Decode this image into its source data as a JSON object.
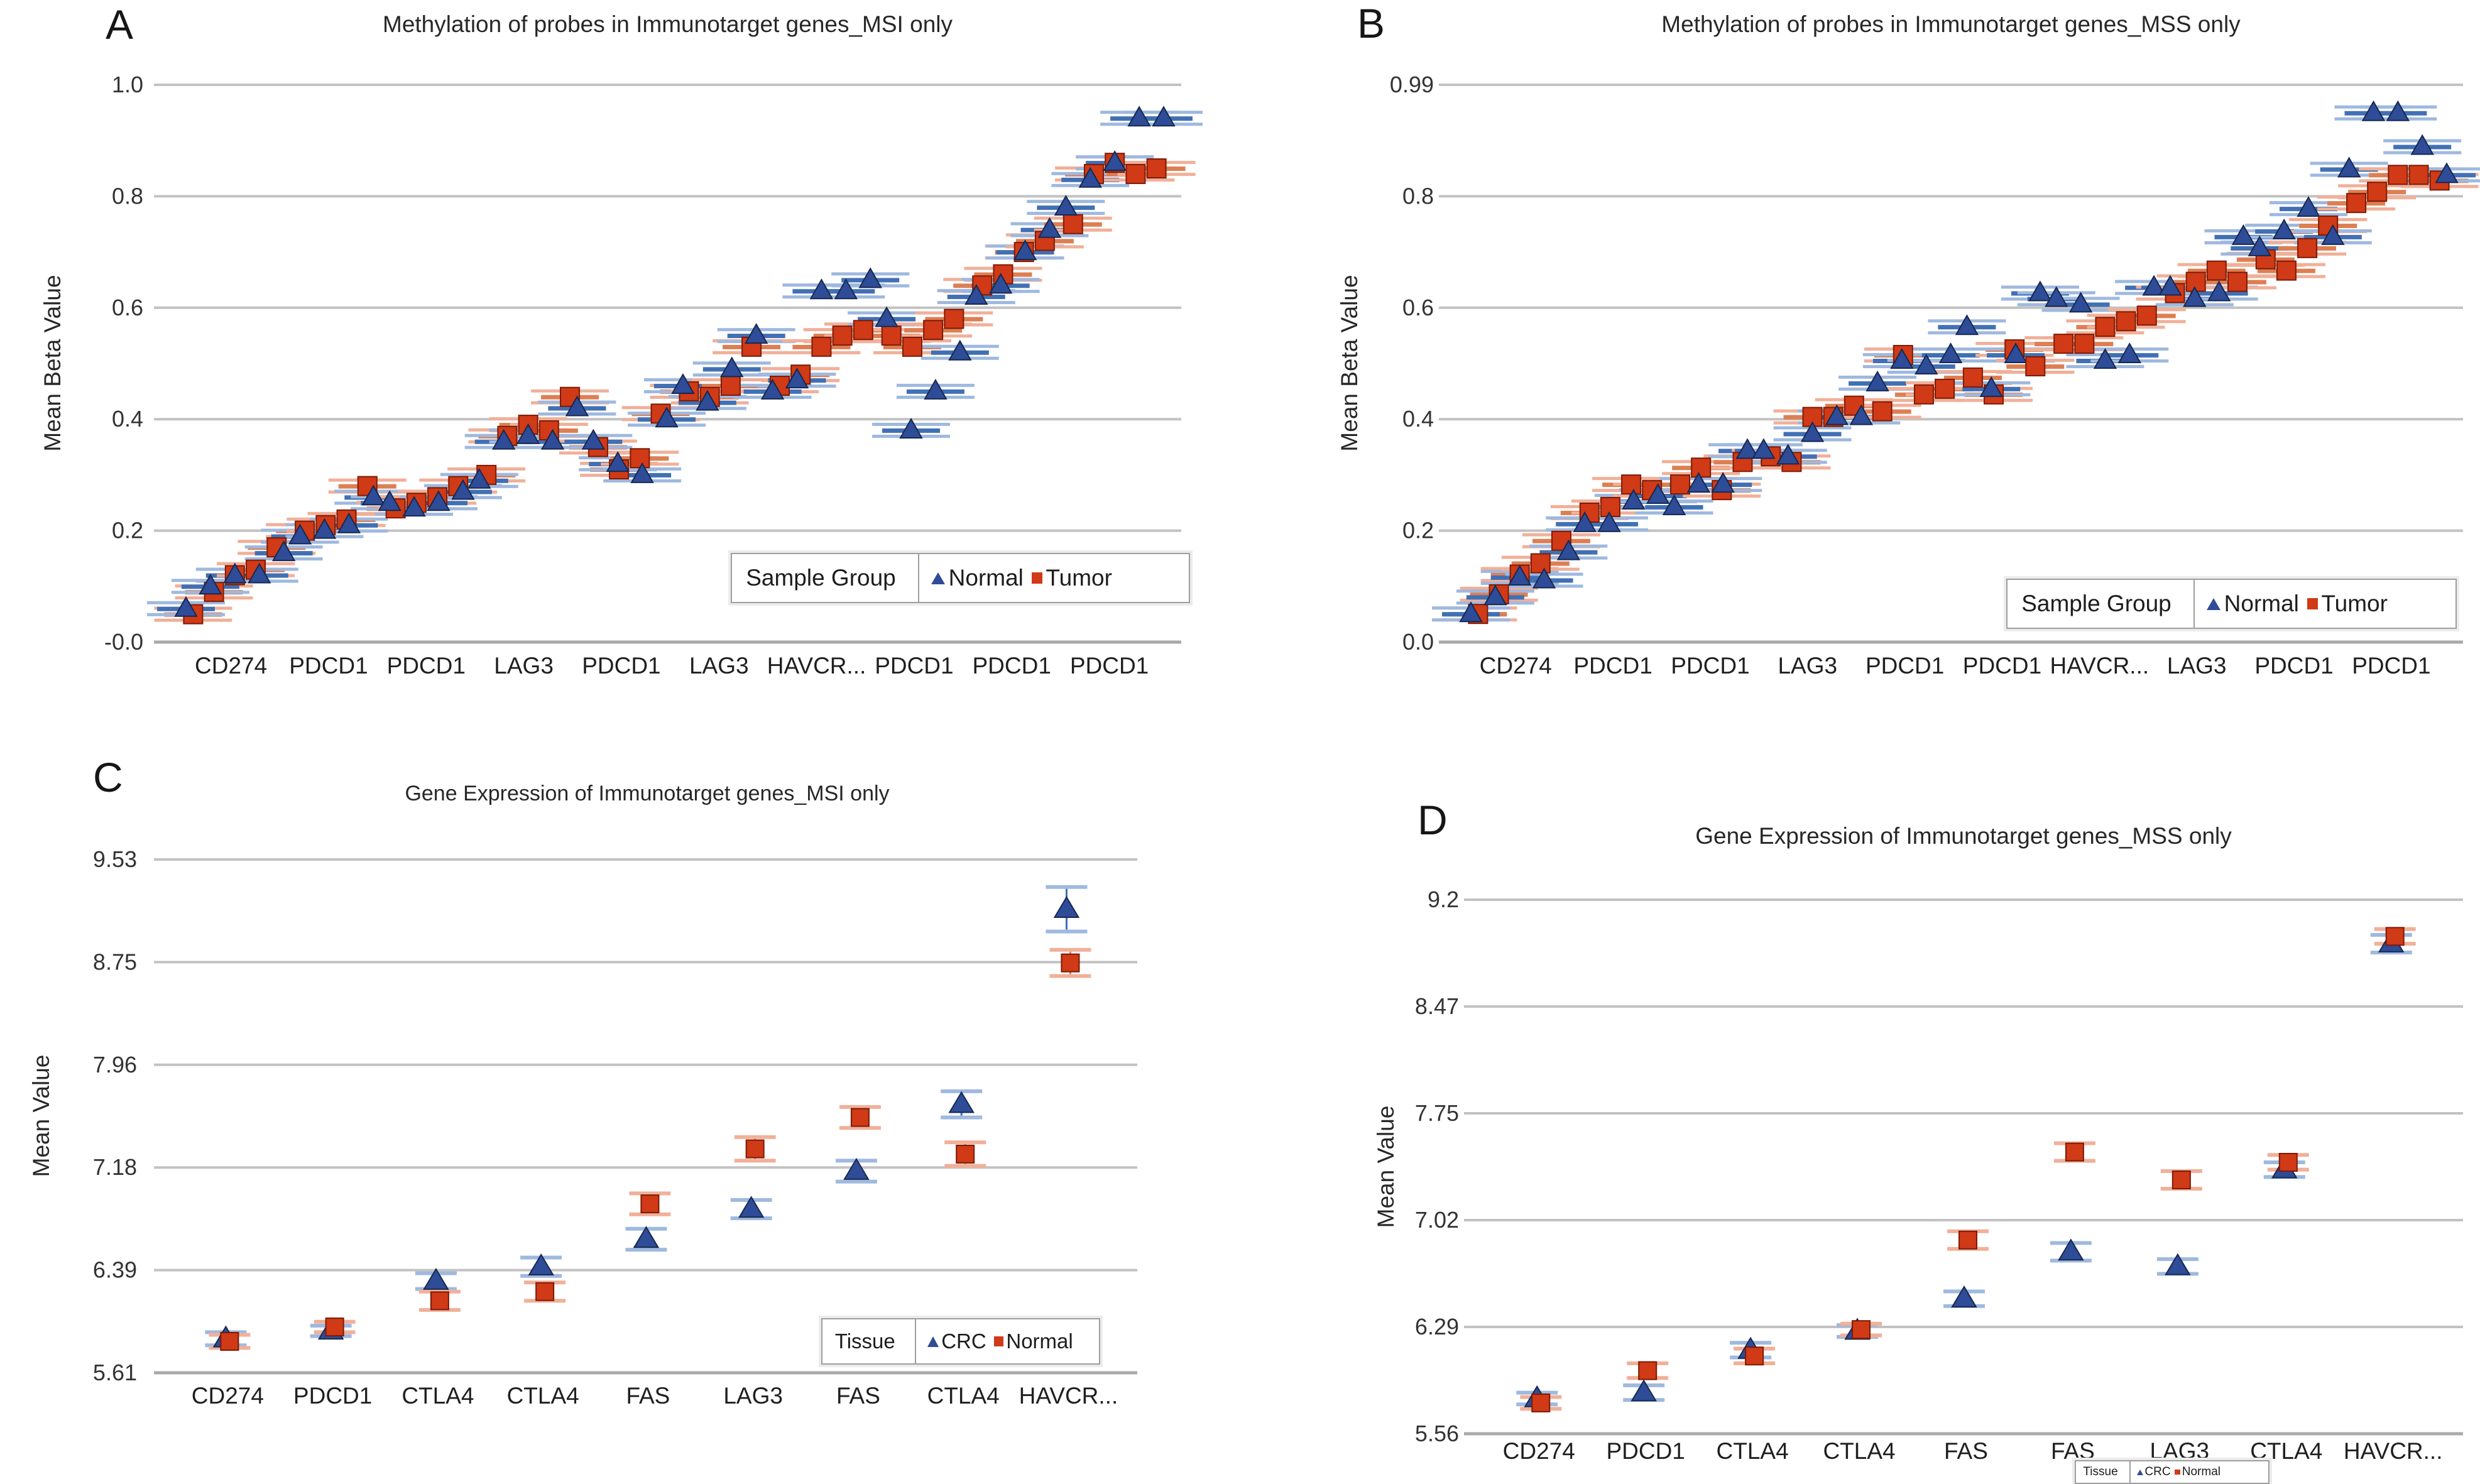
{
  "figure": {
    "background": "#ffffff",
    "colors": {
      "normal_blue": "#2E4C97",
      "blue_stroke": "#17284F",
      "blue_band": "#4170B4",
      "blue_band_light": "#9FB9DF",
      "tumor_red": "#D03A16",
      "red_stroke": "#7D1A05",
      "red_band": "#DD7F53",
      "red_band_light": "#F1B099",
      "grid": "#C2C2C2",
      "axis": "#A9A9A9",
      "tick_text": "#333333",
      "category_text": "#1F1F1F"
    }
  },
  "chart_data": [
    {
      "type": "scatter",
      "chart": "methylation",
      "letter": "A",
      "title": "Methylation of probes in Immunotarget genes_MSI only",
      "ylabel": "Mean Beta Value",
      "y_ticks": [
        "1.0",
        "0.8",
        "0.6",
        "0.4",
        "0.2",
        "-0.0"
      ],
      "y_min": 0.0,
      "y_max": 1.0,
      "grid": "on",
      "x_categories": [
        "CD274",
        "PDCD1",
        "PDCD1",
        "LAG3",
        "PDCD1",
        "LAG3",
        "HAVCR...",
        "PDCD1",
        "PDCD1",
        "PDCD1"
      ],
      "legend": {
        "title": "Sample Group",
        "position": "inside-right-bottom",
        "items": [
          {
            "label": "Normal",
            "marker": "triangle",
            "color": "#2E4C97"
          },
          {
            "label": "Tumor",
            "marker": "square",
            "color": "#D03A16"
          }
        ]
      },
      "series": [
        {
          "name": "Normal",
          "values": [
            0.06,
            0.1,
            0.12,
            0.12,
            0.16,
            0.19,
            0.2,
            0.21,
            0.26,
            0.25,
            0.24,
            0.25,
            0.27,
            0.29,
            0.36,
            0.37,
            0.36,
            0.42,
            0.36,
            0.32,
            0.3,
            0.4,
            0.46,
            0.43,
            0.49,
            0.55,
            0.45,
            0.47,
            0.63,
            0.63,
            0.65,
            0.58,
            0.38,
            0.45,
            0.52,
            0.62,
            0.64,
            0.7,
            0.74,
            0.78,
            0.83,
            0.86,
            0.94,
            0.94
          ]
        },
        {
          "name": "Tumor",
          "values": [
            0.05,
            0.09,
            0.12,
            0.13,
            0.17,
            0.2,
            0.21,
            0.22,
            0.28,
            0.24,
            0.25,
            0.26,
            0.28,
            0.3,
            0.37,
            0.39,
            0.38,
            0.44,
            0.35,
            0.31,
            0.33,
            0.41,
            0.45,
            0.44,
            0.46,
            0.53,
            0.46,
            0.48,
            0.53,
            0.55,
            0.56,
            0.55,
            0.53,
            0.56,
            0.58,
            0.64,
            0.66,
            0.7,
            0.72,
            0.75,
            0.84,
            0.86,
            0.84,
            0.85
          ]
        }
      ]
    },
    {
      "type": "scatter",
      "chart": "methylation",
      "letter": "B",
      "title": "Methylation of probes in Immunotarget genes_MSS only",
      "ylabel": "Mean Beta Value",
      "y_ticks": [
        "0.99",
        "0.8",
        "0.6",
        "0.4",
        "0.2",
        "0.0"
      ],
      "y_min": 0.0,
      "y_max": 0.99,
      "grid": "on",
      "x_categories": [
        "CD274",
        "PDCD1",
        "PDCD1",
        "LAG3",
        "PDCD1",
        "PDCD1",
        "HAVCR...",
        "LAG3",
        "PDCD1",
        "PDCD1"
      ],
      "legend": {
        "title": "Sample Group",
        "position": "inside-right-bottom",
        "items": [
          {
            "label": "Normal",
            "marker": "triangle",
            "color": "#2E4C97"
          },
          {
            "label": "Tumor",
            "marker": "square",
            "color": "#D03A16"
          }
        ]
      },
      "series": [
        {
          "name": "Normal",
          "values": [
            0.05,
            0.08,
            0.115,
            0.11,
            0.16,
            0.21,
            0.21,
            0.25,
            0.26,
            0.24,
            0.28,
            0.28,
            0.34,
            0.34,
            0.33,
            0.37,
            0.4,
            0.4,
            0.46,
            0.5,
            0.49,
            0.51,
            0.56,
            0.45,
            0.51,
            0.62,
            0.61,
            0.6,
            0.5,
            0.51,
            0.63,
            0.63,
            0.61,
            0.62,
            0.72,
            0.7,
            0.73,
            0.77,
            0.72,
            0.84,
            0.94,
            0.94,
            0.88,
            0.83
          ]
        },
        {
          "name": "Tumor",
          "values": [
            0.05,
            0.085,
            0.12,
            0.14,
            0.18,
            0.23,
            0.24,
            0.28,
            0.27,
            0.28,
            0.31,
            0.27,
            0.32,
            0.33,
            0.32,
            0.4,
            0.4,
            0.42,
            0.41,
            0.51,
            0.44,
            0.45,
            0.47,
            0.44,
            0.52,
            0.49,
            0.53,
            0.53,
            0.56,
            0.57,
            0.58,
            0.62,
            0.64,
            0.66,
            0.64,
            0.68,
            0.66,
            0.7,
            0.74,
            0.78,
            0.8,
            0.83,
            0.83,
            0.82
          ]
        }
      ]
    },
    {
      "type": "scatter",
      "chart": "expression",
      "letter": "C",
      "title": "Gene Expression of Immunotarget genes_MSI only",
      "ylabel": "Mean Value",
      "y_ticks": [
        "9.53",
        "8.75",
        "7.96",
        "7.18",
        "6.39",
        "5.61"
      ],
      "y_min": 5.61,
      "y_max": 9.53,
      "grid": "on",
      "x_categories": [
        "CD274",
        "PDCD1",
        "CTLA4",
        "CTLA4",
        "FAS",
        "LAG3",
        "FAS",
        "CTLA4",
        "HAVCR..."
      ],
      "legend": {
        "title": "Tissue",
        "position": "inside-right-bottom",
        "items": [
          {
            "label": "CRC",
            "marker": "triangle",
            "color": "#2E4C97"
          },
          {
            "label": "Normal",
            "marker": "square",
            "color": "#D03A16"
          }
        ]
      },
      "series": [
        {
          "name": "CRC",
          "values": [
            5.87,
            5.93,
            6.31,
            6.42,
            6.63,
            6.86,
            7.15,
            7.66,
            9.15
          ],
          "errors": [
            0.05,
            0.04,
            0.06,
            0.07,
            0.08,
            0.07,
            0.08,
            0.1,
            0.17
          ]
        },
        {
          "name": "Normal",
          "values": [
            5.85,
            5.96,
            6.16,
            6.23,
            6.9,
            7.32,
            7.56,
            7.28,
            8.74
          ],
          "errors": [
            0.05,
            0.04,
            0.07,
            0.07,
            0.08,
            0.09,
            0.08,
            0.09,
            0.1
          ]
        }
      ]
    },
    {
      "type": "scatter",
      "chart": "expression",
      "letter": "D",
      "title": "Gene Expression of Immunotarget genes_MSS only",
      "ylabel": "Mean Value",
      "y_ticks": [
        "9.2",
        "8.47",
        "7.75",
        "7.02",
        "6.29",
        "5.56"
      ],
      "y_min": 5.56,
      "y_max": 9.2,
      "grid": "on",
      "x_categories": [
        "CD274",
        "PDCD1",
        "CTLA4",
        "CTLA4",
        "FAS",
        "FAS",
        "LAG3",
        "CTLA4",
        "HAVCR..."
      ],
      "legend": {
        "title": "Tissue",
        "position": "below-axis-center",
        "items": [
          {
            "label": "CRC",
            "marker": "triangle",
            "color": "#2E4C97"
          },
          {
            "label": "Normal",
            "marker": "square",
            "color": "#D03A16"
          }
        ]
      },
      "series": [
        {
          "name": "CRC",
          "values": [
            5.8,
            5.84,
            6.13,
            6.26,
            6.48,
            6.8,
            6.7,
            7.36,
            8.9
          ],
          "errors": [
            0.04,
            0.05,
            0.05,
            0.04,
            0.05,
            0.06,
            0.05,
            0.05,
            0.06
          ]
        },
        {
          "name": "Normal",
          "values": [
            5.77,
            5.99,
            6.09,
            6.27,
            6.88,
            7.48,
            7.29,
            7.41,
            8.95
          ],
          "errors": [
            0.04,
            0.05,
            0.05,
            0.04,
            0.06,
            0.06,
            0.06,
            0.05,
            0.05
          ]
        }
      ]
    }
  ]
}
